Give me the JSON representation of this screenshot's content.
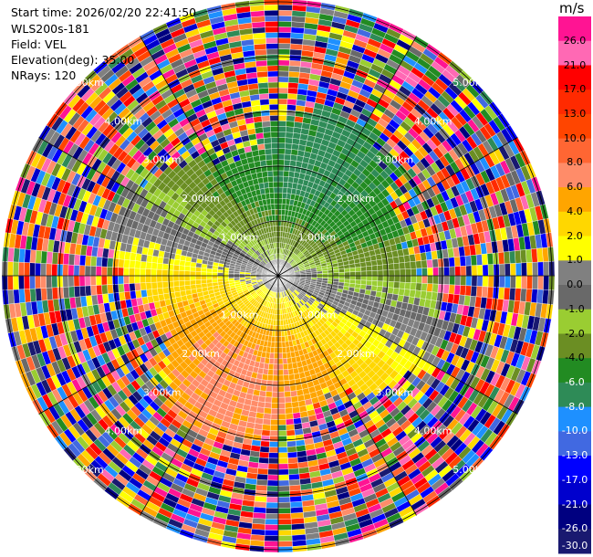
{
  "header": {
    "start_time": "Start time: 2026/02/20 22:41:50",
    "instrument": "WLS200s-181",
    "field": "Field: VEL",
    "elevation": "Elevation(deg): 35.00",
    "nrays": "NRays: 120"
  },
  "colorbar": {
    "unit": "m/s",
    "labels": [
      "26.0",
      "21.0",
      "17.0",
      "13.0",
      "10.0",
      "8.0",
      "6.0",
      "4.0",
      "2.0",
      "1.0",
      "0.0",
      "-1.0",
      "-2.0",
      "-4.0",
      "-6.0",
      "-8.0",
      "-10.0",
      "-13.0",
      "-17.0",
      "-21.0",
      "-26.0",
      "-30.0"
    ],
    "colors": [
      "#ff1493",
      "#ff69b4",
      "#ff0000",
      "#ff2a00",
      "#ff4500",
      "#ff6633",
      "#ff8c69",
      "#ffa500",
      "#ffd700",
      "#ffff00",
      "#808080",
      "#696969",
      "#9acd32",
      "#6b8e23",
      "#228b22",
      "#2e8b57",
      "#1e90ff",
      "#4169e1",
      "#0000ff",
      "#0000cd",
      "#000080",
      "#191970"
    ]
  },
  "chart_data": {
    "type": "ppi",
    "field": "VEL",
    "units": "m/s",
    "nrays": 120,
    "elevation_deg": 35.0,
    "range_rings_km": [
      1,
      2,
      3,
      4,
      5
    ],
    "range_ring_labels": [
      "1.00km",
      "2.00km",
      "3.00km",
      "4.00km",
      "5.00km"
    ],
    "color_scale": [
      26.0,
      21.0,
      17.0,
      13.0,
      10.0,
      8.0,
      6.0,
      4.0,
      2.0,
      1.0,
      0.0,
      -1.0,
      -2.0,
      -4.0,
      -6.0,
      -8.0,
      -10.0,
      -13.0,
      -17.0,
      -21.0,
      -26.0,
      -30.0
    ],
    "coherent_region_km": 2.8
  }
}
